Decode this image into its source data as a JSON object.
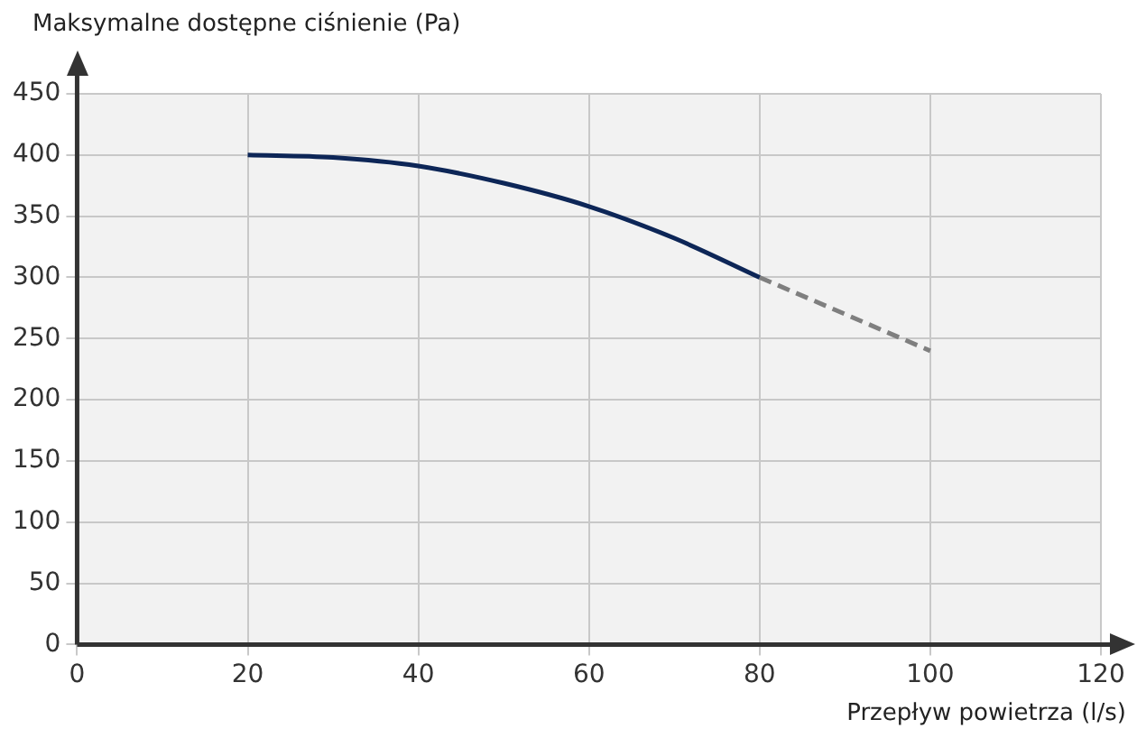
{
  "chart_data": {
    "type": "line",
    "ylabel": "Maksymalne dostępne ciśnienie (Pa)",
    "xlabel": "Przepływ powietrza (l/s)",
    "xlim": [
      0,
      120
    ],
    "xticks": [
      0,
      20,
      40,
      60,
      80,
      100,
      120
    ],
    "ylim": [
      0,
      450
    ],
    "yticks": [
      0,
      50,
      100,
      150,
      200,
      250,
      300,
      350,
      400,
      450
    ],
    "grid": true,
    "marker": "none",
    "series": [
      {
        "color": "#0d2657",
        "line_style": "solid",
        "x": [
          20,
          30,
          40,
          50,
          60,
          70,
          80
        ],
        "values": [
          400,
          398,
          391,
          377,
          358,
          332,
          300
        ]
      },
      {
        "color": "#7f7f7f",
        "line_style": "dashed",
        "x": [
          80,
          100
        ],
        "values": [
          300,
          240
        ]
      }
    ]
  }
}
